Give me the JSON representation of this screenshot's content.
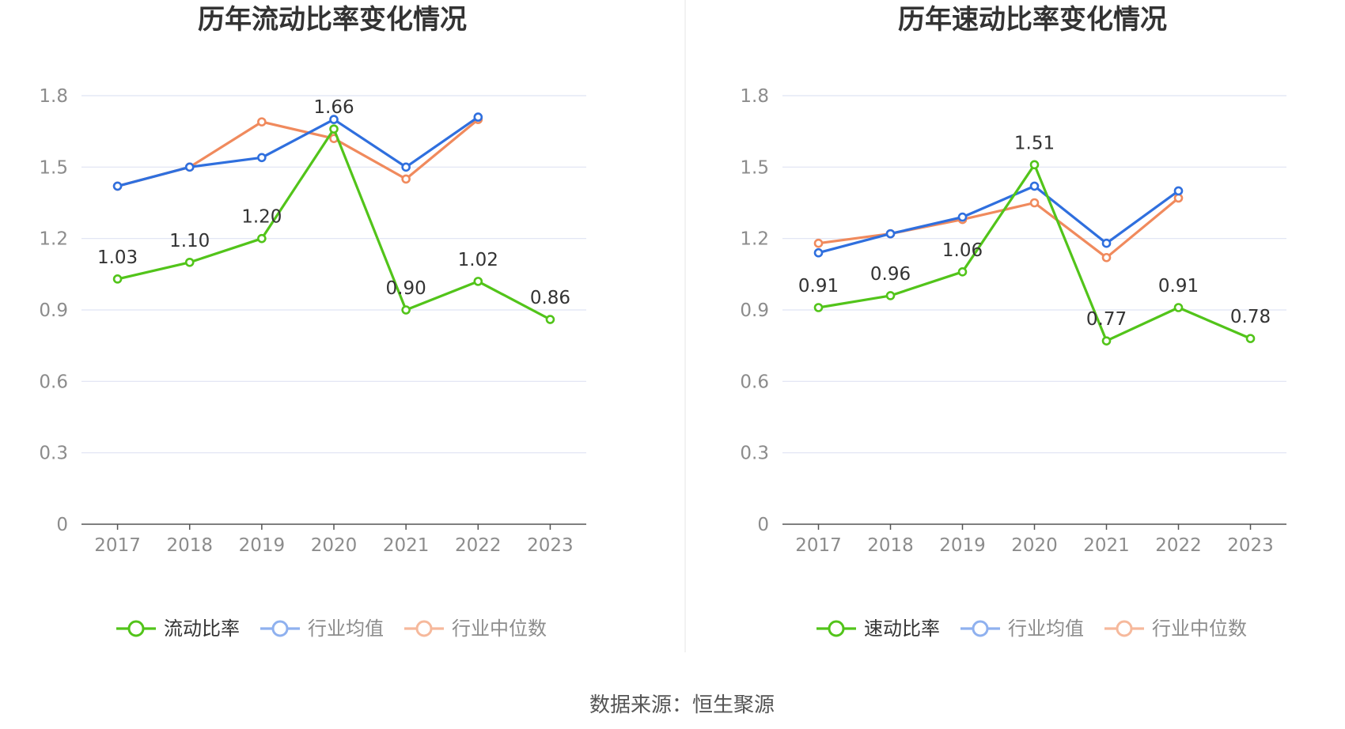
{
  "colors": {
    "main": "#52c41a",
    "avg": "#2f6fde",
    "median": "#f08a5d",
    "avg_legend": "#8fb1ef",
    "median_legend": "#f6b99c",
    "grid": "#dfe3f3",
    "axis": "#555555",
    "divider": "#eeeeee"
  },
  "source": {
    "text": "数据来源：恒生聚源"
  },
  "chart_data": [
    {
      "type": "line",
      "title": "历年流动比率变化情况",
      "categories": [
        "2017",
        "2018",
        "2019",
        "2020",
        "2021",
        "2022",
        "2023"
      ],
      "ylim": [
        0,
        1.8
      ],
      "yticks": [
        "0",
        "0.3",
        "0.6",
        "0.9",
        "1.2",
        "1.5",
        "1.8"
      ],
      "grid": true,
      "legend_position": "bottom",
      "series": [
        {
          "name": "流动比率",
          "key": "main",
          "values": [
            1.03,
            1.1,
            1.2,
            1.66,
            0.9,
            1.02,
            0.86
          ],
          "labels": [
            "1.03",
            "1.10",
            "1.20",
            "1.66",
            "0.90",
            "1.02",
            "0.86"
          ]
        },
        {
          "name": "行业均值",
          "key": "avg",
          "values": [
            1.42,
            1.5,
            1.54,
            1.7,
            1.5,
            1.71,
            null
          ]
        },
        {
          "name": "行业中位数",
          "key": "median",
          "values": [
            1.42,
            1.5,
            1.69,
            1.62,
            1.45,
            1.7,
            null
          ]
        }
      ]
    },
    {
      "type": "line",
      "title": "历年速动比率变化情况",
      "categories": [
        "2017",
        "2018",
        "2019",
        "2020",
        "2021",
        "2022",
        "2023"
      ],
      "ylim": [
        0,
        1.8
      ],
      "yticks": [
        "0",
        "0.3",
        "0.6",
        "0.9",
        "1.2",
        "1.5",
        "1.8"
      ],
      "grid": true,
      "legend_position": "bottom",
      "series": [
        {
          "name": "速动比率",
          "key": "main",
          "values": [
            0.91,
            0.96,
            1.06,
            1.51,
            0.77,
            0.91,
            0.78
          ],
          "labels": [
            "0.91",
            "0.96",
            "1.06",
            "1.51",
            "0.77",
            "0.91",
            "0.78"
          ]
        },
        {
          "name": "行业均值",
          "key": "avg",
          "values": [
            1.14,
            1.22,
            1.29,
            1.42,
            1.18,
            1.4,
            null
          ]
        },
        {
          "name": "行业中位数",
          "key": "median",
          "values": [
            1.18,
            1.22,
            1.28,
            1.35,
            1.12,
            1.37,
            null
          ]
        }
      ]
    }
  ]
}
